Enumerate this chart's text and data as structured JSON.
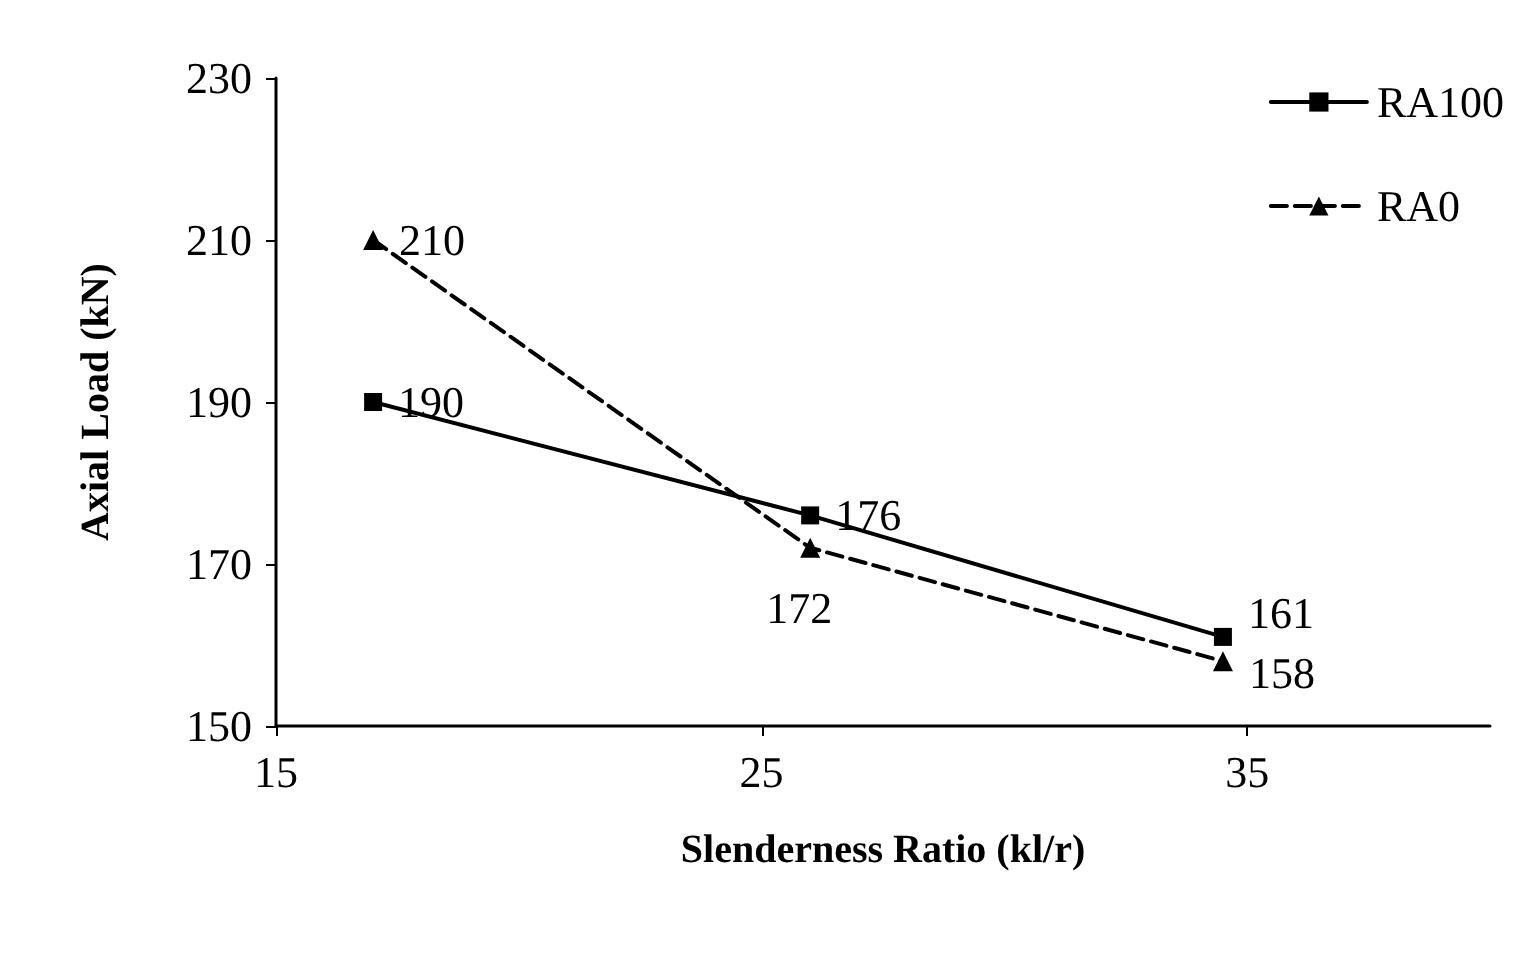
{
  "chart_data": {
    "type": "line",
    "xlabel": "Slenderness Ratio (kl/r)",
    "ylabel": "Axial Load (kN)",
    "x": [
      17,
      26,
      34.5
    ],
    "series": [
      {
        "name": "RA100",
        "color": "#000000",
        "values": [
          190,
          176,
          161
        ],
        "marker": "square",
        "line_style": "solid"
      },
      {
        "name": "RA0",
        "color": "#000000",
        "values": [
          210,
          172,
          158
        ],
        "marker": "triangle",
        "line_style": "dashed"
      }
    ],
    "xlim": [
      15,
      40
    ],
    "xticks": [
      15,
      25,
      35
    ],
    "ylim": [
      150,
      230
    ],
    "yticks": [
      150,
      170,
      190,
      210,
      230
    ],
    "grid": false,
    "legend": "top right",
    "data_labels": true
  }
}
